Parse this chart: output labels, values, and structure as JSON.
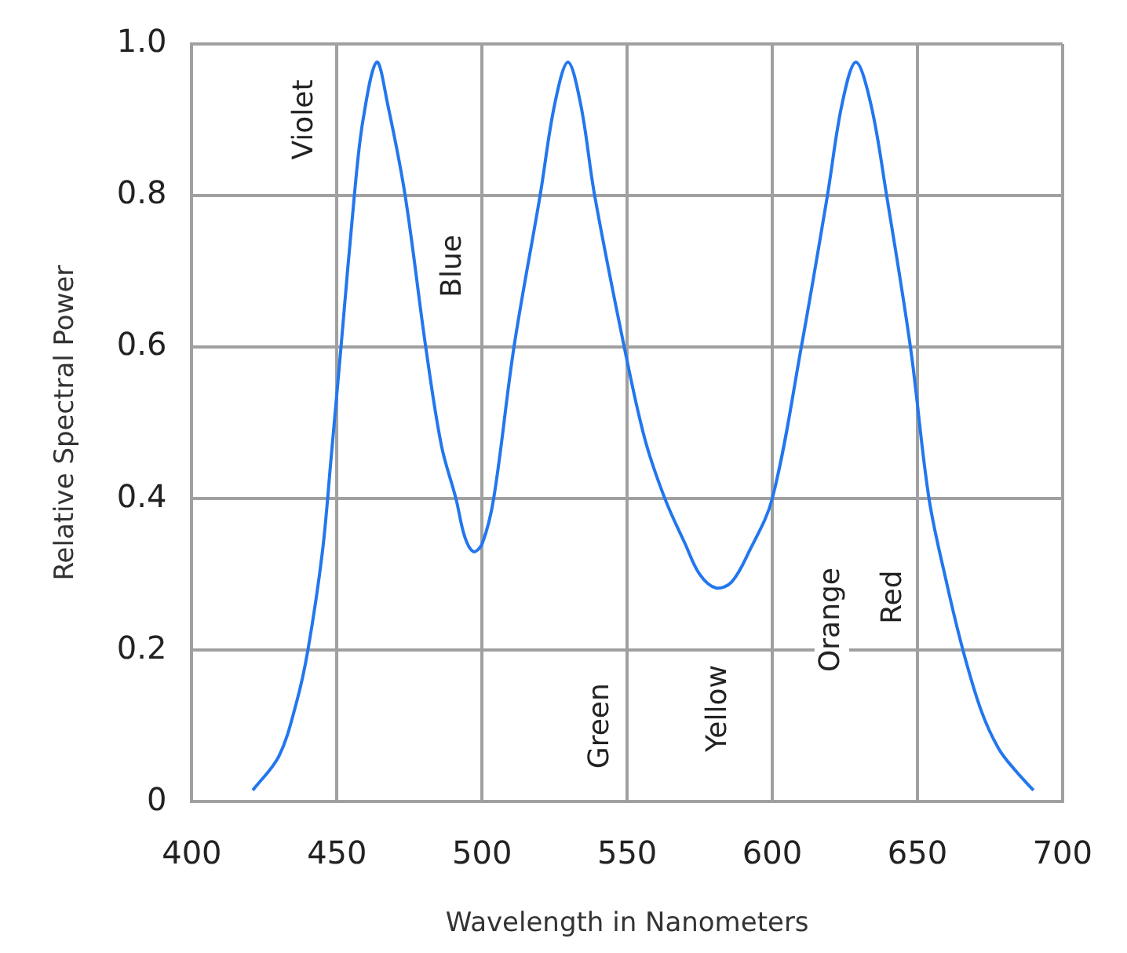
{
  "chart_data": {
    "type": "line",
    "xlabel": "Wavelength in Nanometers",
    "ylabel": "Relative Spectral Power",
    "x": [
      421,
      430,
      436,
      440,
      445,
      448,
      451.4,
      456,
      459,
      463.7,
      467.5,
      473.5,
      480.6,
      486,
      491,
      494,
      497,
      500,
      504,
      511,
      520,
      525,
      529.6,
      534,
      538.8,
      549,
      556,
      563,
      570,
      575,
      580.6,
      586,
      592,
      600,
      610,
      619,
      624,
      628.8,
      634,
      639.4,
      647.6,
      654,
      660,
      665.7,
      672,
      678,
      684,
      690
    ],
    "series": [
      {
        "color": "#2277ee",
        "values": [
          0.015,
          0.06,
          0.13,
          0.2,
          0.33,
          0.454,
          0.6,
          0.8,
          0.9,
          0.976,
          0.92,
          0.8,
          0.6,
          0.47,
          0.4,
          0.35,
          0.33,
          0.34,
          0.4,
          0.6,
          0.8,
          0.92,
          0.976,
          0.92,
          0.8,
          0.6,
          0.48,
          0.4,
          0.34,
          0.3,
          0.282,
          0.29,
          0.33,
          0.4,
          0.6,
          0.8,
          0.92,
          0.976,
          0.92,
          0.8,
          0.6,
          0.4,
          0.29,
          0.2,
          0.12,
          0.07,
          0.04,
          0.015
        ]
      }
    ],
    "xlim": [
      400,
      700
    ],
    "xticks": [
      400,
      450,
      500,
      550,
      600,
      650,
      700
    ],
    "ylim": [
      0,
      1
    ],
    "yticks": [
      0,
      0.2,
      0.4,
      0.6,
      0.8,
      {
        "value": 1,
        "label": "1.0"
      }
    ],
    "grid": true,
    "marker": "none",
    "line_style": "solid",
    "annotations": [
      "Violet",
      "Blue",
      "Green",
      "Yellow",
      "Orange",
      "Red"
    ]
  }
}
